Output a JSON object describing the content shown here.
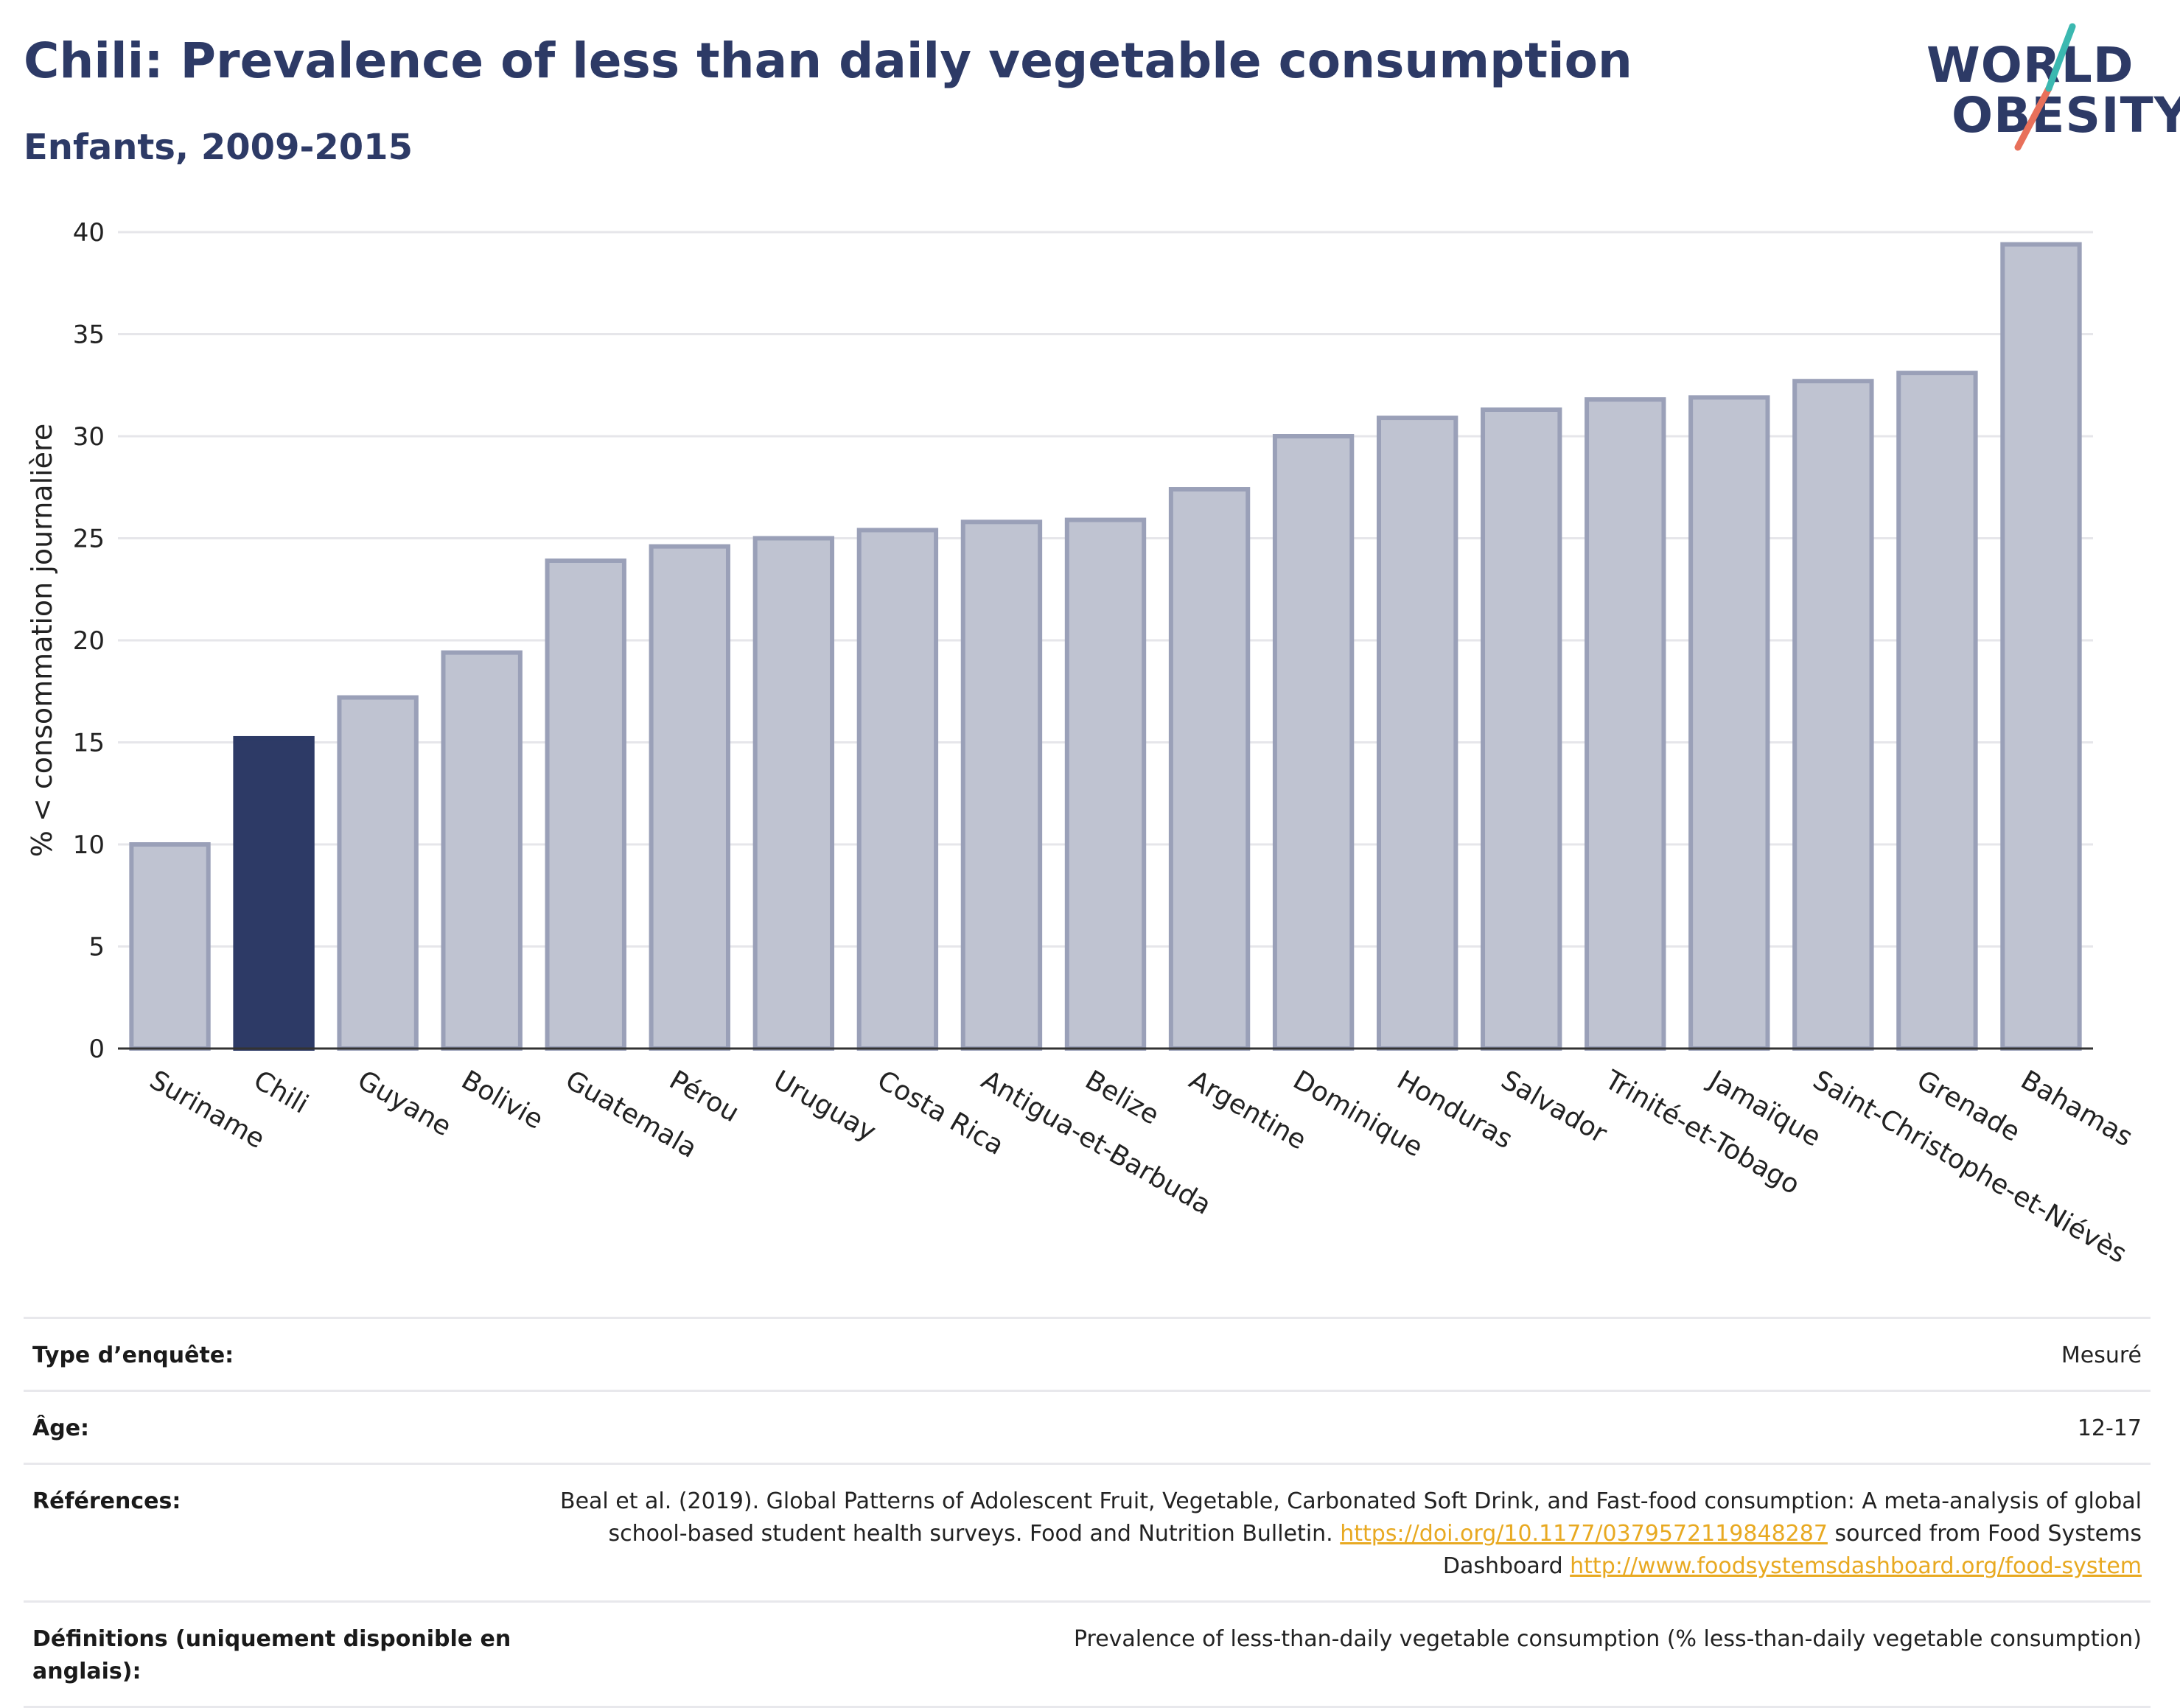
{
  "title": "Chili: Prevalence of less than daily vegetable consumption",
  "subtitle": "Enfants, 2009-2015",
  "logo": {
    "line1": "WORLD",
    "line2": "OBESITY"
  },
  "colors": {
    "highlight": "#2d3a66",
    "bar": "#bfc3d1",
    "bar_stroke": "#9aa0b8",
    "grid": "#e6e6ea",
    "axis": "#333333",
    "link": "#e8a921"
  },
  "chart_data": {
    "type": "bar",
    "categories": [
      "Suriname",
      "Chili",
      "Guyane",
      "Bolivie",
      "Guatemala",
      "Pérou",
      "Uruguay",
      "Costa Rica",
      "Antigua-et-Barbuda",
      "Belize",
      "Argentine",
      "Dominique",
      "Honduras",
      "Salvador",
      "Trinité-et-Tobago",
      "Jamaïque",
      "Saint-Christophe-et-Niévès",
      "Grenade",
      "Bahamas"
    ],
    "values": [
      10.0,
      15.2,
      17.2,
      19.4,
      23.9,
      24.6,
      25.0,
      25.4,
      25.8,
      25.9,
      27.4,
      30.0,
      30.9,
      31.3,
      31.8,
      31.9,
      32.7,
      33.1,
      39.4
    ],
    "highlight": "Chili",
    "ylabel": "% < consommation journalière",
    "xlabel": "",
    "ylim": [
      0,
      40
    ],
    "yticks": [
      0,
      5,
      10,
      15,
      20,
      25,
      30,
      35,
      40
    ],
    "grid": true
  },
  "info": {
    "survey_label": "Type d’enquête:",
    "survey_value": "Mesuré",
    "age_label": "Âge:",
    "age_value": "12-17",
    "refs_label": "Références:",
    "refs_text1": "Beal et al. (2019). Global Patterns of Adolescent Fruit, Vegetable, Carbonated Soft Drink, and Fast-food consumption: A meta-analysis of global school-based student health surveys. Food and Nutrition Bulletin. ",
    "refs_link1": "https://doi.org/10.1177/0379572119848287",
    "refs_text2": " sourced from Food Systems Dashboard ",
    "refs_link2": "http://www.foodsystemsdashboard.org/food-system",
    "defs_label": "Définitions (uniquement disponible en anglais):",
    "defs_value": "Prevalence of less-than-daily vegetable consumption (% less-than-daily vegetable consumption)"
  }
}
